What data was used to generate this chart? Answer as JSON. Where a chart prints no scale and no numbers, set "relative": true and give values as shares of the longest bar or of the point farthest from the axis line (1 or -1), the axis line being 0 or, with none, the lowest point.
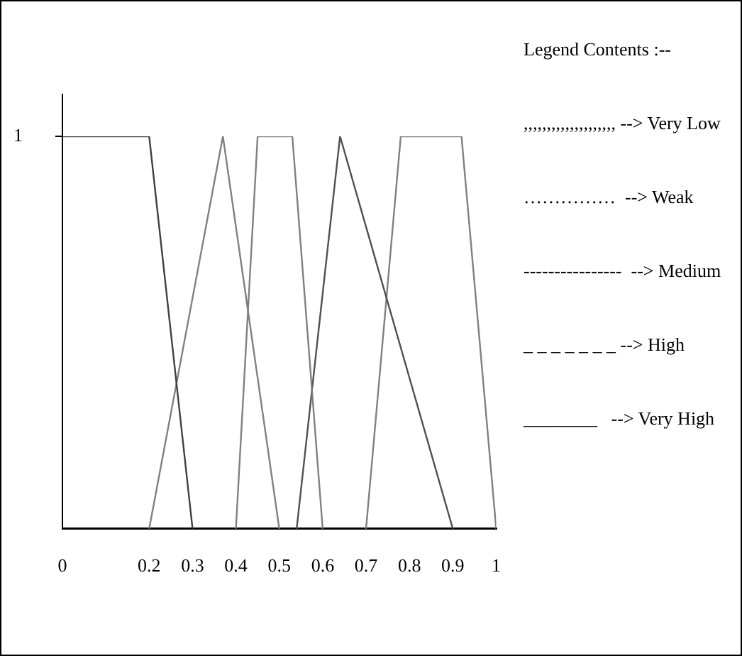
{
  "chart_data": {
    "type": "line",
    "relative": true,
    "xlim": [
      0,
      1
    ],
    "xticks": [
      0,
      0.2,
      0.3,
      0.4,
      0.5,
      0.6,
      0.7,
      0.8,
      0.9,
      1
    ],
    "grid": false,
    "legend": false,
    "marker": "none",
    "line_style": "solid",
    "series": [
      {
        "color": "#404040",
        "x": [
          0,
          0.2,
          0.3
        ],
        "values": [
          1,
          1,
          0
        ]
      },
      {
        "color": "#808080",
        "x": [
          0.2,
          0.37,
          0.5
        ],
        "values": [
          0,
          1,
          0
        ]
      },
      {
        "color": "#808080",
        "x": [
          0.4,
          0.45,
          0.53,
          0.6
        ],
        "values": [
          0,
          1,
          1,
          0
        ]
      },
      {
        "color": "#505050",
        "x": [
          0.54,
          0.64,
          0.9
        ],
        "values": [
          0,
          1,
          0
        ]
      },
      {
        "color": "#808080",
        "x": [
          0.7,
          0.78,
          0.92,
          1
        ],
        "values": [
          0,
          1,
          1,
          0
        ]
      }
    ],
    "annotations": [
      "1",
      "Legend Contents :--",
      ",,,,,,,,,,,,,,,,,,,, --> Very Low",
      "……………  --> Weak",
      "----------------  --> Medium",
      "_ _ _ _ _ _ _ --> High",
      "________   --> Very High"
    ]
  }
}
